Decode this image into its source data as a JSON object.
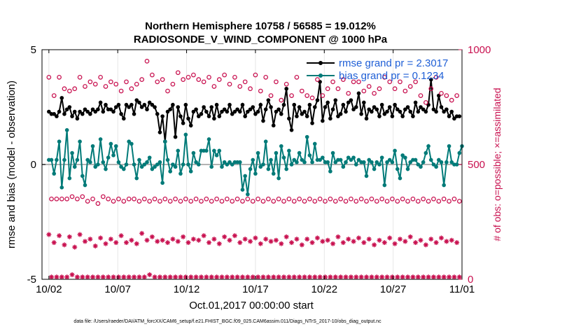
{
  "chart_data": {
    "type": "line",
    "title_line1": "Northern Hemisphere 10758 / 56585 = 19.012%",
    "title_line2": "RADIOSONDE_V_WIND_COMPONENT @ 1000 hPa",
    "xlabel": "Oct.01,2017 00:00:00 start",
    "ylabel_left": "rmse and bias (model - observation)",
    "ylabel_right": "# of obs: o=possible; ×=assimilated",
    "x_ticks": [
      "10/02",
      "10/07",
      "10/12",
      "10/17",
      "10/22",
      "10/27",
      "11/01"
    ],
    "x_tick_days": [
      1,
      6,
      11,
      16,
      21,
      26,
      31
    ],
    "xlim_days": [
      0.5,
      31.0
    ],
    "ylim_left": [
      -5,
      5
    ],
    "yticks_left": [
      "5",
      "0",
      "-5"
    ],
    "ylim_right": [
      0,
      1000
    ],
    "yticks_right": [
      "1000",
      "500",
      "0"
    ],
    "zero_line": true,
    "grid_x": true,
    "legend_position": "top-right",
    "footer": "data file: /Users/raeder/DAI/ATM_forcXX/CAM6_setup/f.e21.FHIST_BGC.f09_025.CAM6assim.011/Diags_NTrS_2017-10/obs_diag_output.nc",
    "colors": {
      "rmse": "#000000",
      "bias": "#007a78",
      "counts": "#c8104f",
      "legend_text": "#1f5fd6",
      "zero_line": "#b3b3b3"
    },
    "series": [
      {
        "name": "rmse grand pr = 2.3017",
        "marker": "filled-circle",
        "axis": "left",
        "values": [
          2.3,
          2.2,
          2.2,
          2.1,
          2.3,
          2.9,
          2.2,
          2.4,
          2.5,
          2.1,
          2.3,
          2.0,
          2.3,
          2.2,
          2.4,
          2.3,
          2.2,
          2.4,
          2.3,
          2.4,
          2.7,
          2.3,
          2.6,
          2.4,
          2.4,
          2.3,
          2.5,
          2.6,
          2.2,
          2.0,
          2.6,
          2.5,
          2.6,
          2.2,
          2.8,
          2.7,
          2.5,
          2.6,
          2.4,
          2.7,
          2.6,
          2.5,
          2.2,
          1.4,
          2.1,
          1.0,
          2.3,
          2.4,
          2.6,
          1.2,
          2.5,
          2.1,
          1.8,
          2.6,
          2.0,
          1.7,
          2.3,
          2.4,
          2.1,
          2.2,
          2.5,
          2.3,
          2.1,
          2.5,
          2.0,
          2.6,
          2.1,
          2.3,
          2.4,
          2.3,
          2.6,
          2.2,
          2.3,
          2.4,
          2.3,
          2.6,
          2.1,
          2.3,
          2.4,
          2.5,
          2.2,
          2.3,
          2.6,
          1.9,
          2.4,
          2.8,
          2.5,
          1.7,
          2.3,
          2.4,
          2.2,
          2.6,
          3.3,
          2.0,
          1.5,
          2.6,
          2.1,
          2.5,
          2.2,
          2.3,
          2.1,
          2.6,
          1.8,
          2.5,
          2.8,
          3.6,
          1.9,
          2.5,
          2.7,
          2.0,
          2.4,
          2.8,
          2.1,
          2.2,
          2.6,
          2.3,
          2.7,
          2.8,
          2.4,
          2.5,
          3.1,
          2.2,
          2.7,
          2.0,
          2.4,
          2.3,
          2.5,
          2.4,
          2.1,
          2.6,
          2.2,
          2.3,
          2.5,
          2.1,
          2.6,
          2.4,
          2.3,
          2.1,
          2.4,
          2.5,
          2.3,
          2.1,
          2.7,
          2.3,
          2.5,
          2.4,
          2.3,
          2.6,
          3.7,
          2.4,
          2.3,
          3.0,
          2.5,
          2.3,
          2.4,
          2.1,
          2.3,
          2.0,
          2.1,
          2.1
        ]
      },
      {
        "name": "bias grand pr = 0.1234",
        "marker": "filled-circle",
        "axis": "left",
        "values": [
          0.2,
          0.2,
          -0.4,
          0.2,
          1.0,
          -1.0,
          0.2,
          1.5,
          -0.6,
          0.5,
          -0.1,
          0.2,
          1.0,
          -0.5,
          -0.9,
          0.2,
          0.1,
          0.8,
          -0.1,
          0.0,
          1.1,
          0.1,
          -0.2,
          0.3,
          0.9,
          0.4,
          0.8,
          0.1,
          -0.1,
          -0.2,
          0.0,
          1.0,
          0.9,
          0.0,
          -0.6,
          0.2,
          -0.1,
          0.0,
          0.1,
          0.3,
          -0.2,
          -0.1,
          0.0,
          0.1,
          -0.8,
          1.0,
          0.2,
          -0.3,
          0.0,
          -0.1,
          0.6,
          -0.4,
          0.0,
          1.3,
          0.0,
          -0.3,
          0.5,
          0.1,
          0.0,
          0.6,
          0.6,
          0.6,
          1.1,
          -0.1,
          0.6,
          0.4,
          0.6,
          -0.1,
          0.1,
          0.0,
          0.1,
          0.0,
          0.1,
          0.1,
          0.1,
          -1.1,
          -0.5,
          -1.3,
          -0.2,
          0.2,
          -0.4,
          0.5,
          -0.1,
          0.0,
          1.0,
          -0.2,
          0.2,
          -0.4,
          0.5,
          -0.6,
          0.8,
          0.3,
          -0.2,
          0.6,
          0.0,
          0.2,
          0.1,
          0.5,
          0.2,
          0.1,
          1.2,
          0.4,
          0.1,
          0.9,
          0.2,
          0.2,
          0.3,
          0.1,
          0.1,
          -0.3,
          0.5,
          0.1,
          0.2,
          0.2,
          -0.1,
          0.1,
          0.3,
          0.2,
          0.3,
          0.0,
          0.2,
          0.1,
          0.1,
          -0.5,
          0.2,
          0.1,
          -0.2,
          0.1,
          0.0,
          0.3,
          -0.9,
          0.1,
          0.2,
          0.1,
          0.6,
          -0.2,
          -0.6,
          0.4,
          0.3,
          -0.2,
          0.1,
          0.2,
          0.2,
          0.0,
          -0.1,
          0.1,
          0.5,
          0.8,
          0.2,
          0.0,
          -0.1,
          0.2,
          0.1,
          -0.9,
          0.1,
          0.8,
          0.1,
          0.0,
          0.0,
          0.5,
          0.8
        ]
      },
      {
        "name": "obs possible",
        "marker": "open-circle",
        "axis": "right",
        "values_mixed": [
          880,
          350,
          800,
          350,
          880,
          350,
          830,
          350,
          820,
          360,
          830,
          350,
          880,
          360,
          840,
          340,
          860,
          350,
          850,
          330,
          880,
          360,
          840,
          350,
          860,
          340,
          850,
          350,
          820,
          340,
          860,
          350,
          830,
          350,
          850,
          340,
          870,
          350,
          950,
          340,
          890,
          350,
          860,
          340,
          870,
          350,
          820,
          340,
          850,
          350,
          900,
          340,
          870,
          350,
          880,
          340,
          890,
          350,
          870,
          340,
          860,
          350,
          880,
          340,
          840,
          350,
          870,
          340,
          890,
          350,
          850,
          340,
          880,
          350,
          840,
          340,
          860,
          350,
          830,
          340,
          890,
          350,
          820,
          340,
          880,
          350,
          800,
          340,
          860,
          350,
          780,
          340,
          850,
          350,
          800,
          340,
          880,
          350,
          820,
          340,
          800,
          350,
          790,
          340,
          870,
          350,
          800,
          340,
          830,
          350,
          860,
          340,
          830,
          350,
          870,
          340,
          810,
          350,
          860,
          340,
          860,
          350,
          820,
          340,
          840,
          350,
          810,
          340,
          830,
          350,
          880,
          340,
          860,
          350,
          830,
          340,
          860,
          350,
          820,
          340,
          840,
          350,
          860,
          340,
          800,
          350,
          770,
          340,
          830,
          350,
          880,
          340,
          810,
          350,
          800,
          340,
          780,
          350,
          800,
          340
        ]
      },
      {
        "name": "obs assimilated",
        "marker": "asterisk",
        "axis": "right",
        "values_mixed": [
          195,
          10,
          160,
          10,
          190,
          10,
          150,
          10,
          185,
          20,
          140,
          10,
          195,
          10,
          165,
          10,
          175,
          10,
          145,
          10,
          180,
          10,
          155,
          10,
          175,
          10,
          160,
          10,
          190,
          10,
          160,
          10,
          170,
          10,
          155,
          10,
          200,
          10,
          170,
          20,
          185,
          10,
          165,
          10,
          170,
          10,
          160,
          10,
          175,
          10,
          165,
          10,
          185,
          10,
          160,
          10,
          175,
          10,
          170,
          10,
          190,
          10,
          160,
          10,
          175,
          10,
          155,
          10,
          185,
          10,
          170,
          10,
          190,
          10,
          160,
          10,
          175,
          10,
          165,
          10,
          180,
          10,
          155,
          10,
          175,
          10,
          165,
          10,
          170,
          10,
          155,
          10,
          185,
          10,
          160,
          10,
          175,
          10,
          150,
          10,
          175,
          10,
          160,
          10,
          180,
          10,
          165,
          10,
          170,
          10,
          155,
          10,
          185,
          10,
          160,
          10,
          175,
          10,
          165,
          10,
          180,
          10,
          160,
          10,
          175,
          10,
          150,
          10,
          170,
          10,
          160,
          10,
          180,
          10,
          155,
          10,
          175,
          10,
          165,
          10,
          185,
          10,
          160,
          10,
          170,
          10,
          150,
          10,
          175,
          10,
          160,
          10,
          180,
          10,
          165,
          10,
          170,
          10,
          160,
          10
        ]
      }
    ]
  }
}
